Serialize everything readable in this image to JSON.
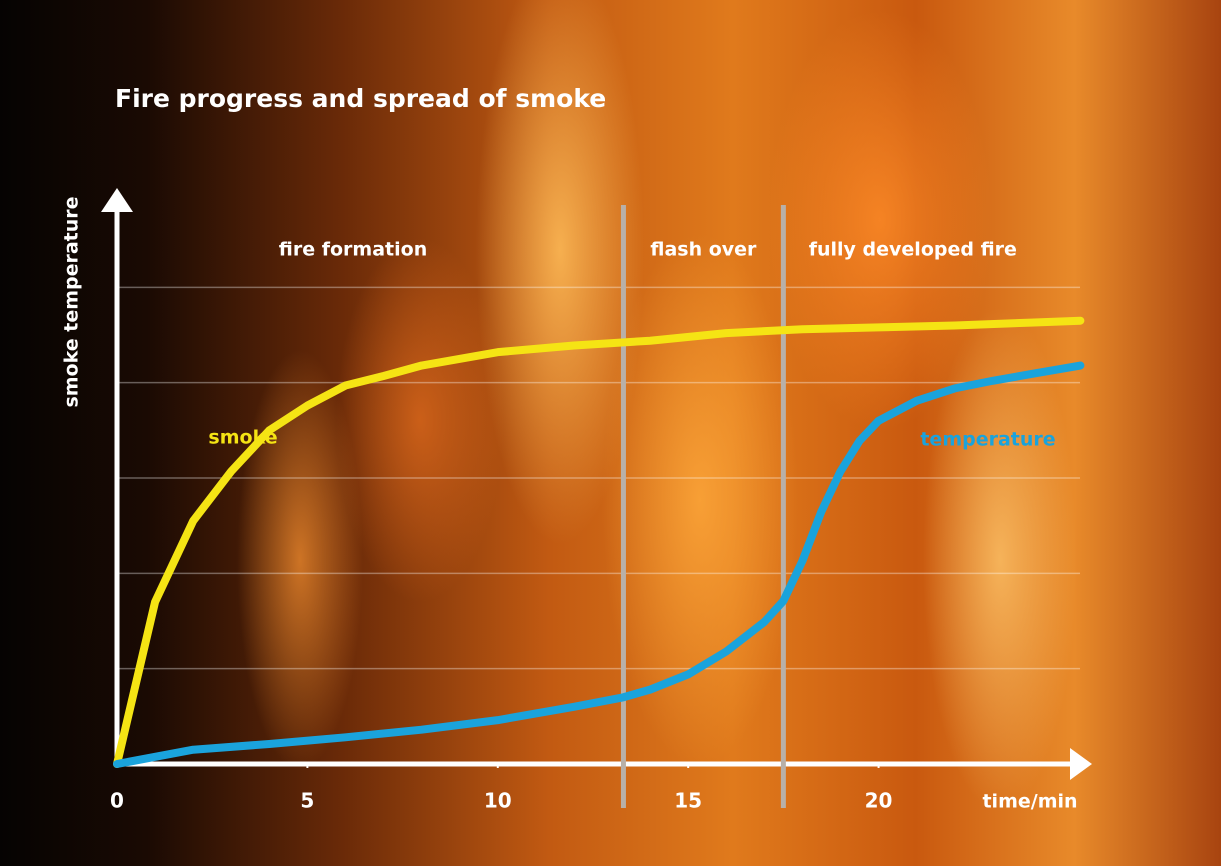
{
  "chart_data": {
    "type": "line",
    "title": "Fire progress and spread of smoke",
    "x_label": "time/min",
    "y_label": "smoke temperature",
    "xlim": [
      0,
      25.5
    ],
    "xticks": [
      0,
      5,
      10,
      15,
      20
    ],
    "ylim": [
      0,
      6
    ],
    "ygrid": [
      1,
      2,
      3,
      4,
      5
    ],
    "phases": [
      "fire formation",
      "flash over",
      "fully developed fire"
    ],
    "phase_boundaries": [
      13.3,
      17.5
    ],
    "series": [
      {
        "name": "smoke",
        "color": "#f5e414",
        "x": [
          0,
          1,
          2,
          3,
          4,
          5,
          6,
          7,
          8,
          10,
          12,
          14,
          16,
          18,
          20,
          22,
          24,
          25.3
        ],
        "values": [
          0,
          1.7,
          2.55,
          3.07,
          3.5,
          3.76,
          3.97,
          4.07,
          4.18,
          4.32,
          4.39,
          4.44,
          4.52,
          4.56,
          4.58,
          4.6,
          4.63,
          4.65
        ]
      },
      {
        "name": "temperature",
        "color": "#1aa3dc",
        "x": [
          0,
          2,
          4,
          6,
          8,
          10,
          12,
          13.3,
          14,
          15,
          16,
          17,
          17.5,
          18,
          18.5,
          19,
          19.5,
          20,
          21,
          22,
          23,
          24,
          25.3
        ],
        "values": [
          0,
          0.15,
          0.21,
          0.28,
          0.36,
          0.46,
          0.6,
          0.7,
          0.78,
          0.94,
          1.18,
          1.49,
          1.71,
          2.13,
          2.65,
          3.07,
          3.39,
          3.6,
          3.81,
          3.94,
          4.02,
          4.09,
          4.18
        ]
      }
    ]
  }
}
